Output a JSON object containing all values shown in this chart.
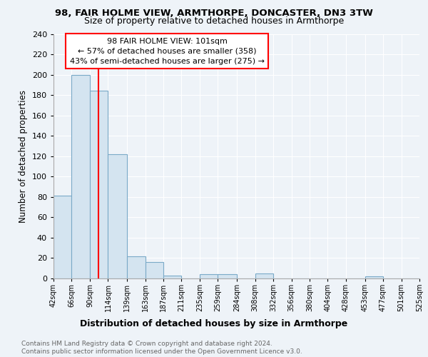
{
  "title1": "98, FAIR HOLME VIEW, ARMTHORPE, DONCASTER, DN3 3TW",
  "title2": "Size of property relative to detached houses in Armthorpe",
  "xlabel": "Distribution of detached houses by size in Armthorpe",
  "ylabel": "Number of detached properties",
  "bar_color": "#d4e4f0",
  "bar_edge_color": "#7aaac8",
  "bin_edges": [
    42,
    66,
    90,
    114,
    139,
    163,
    187,
    211,
    235,
    259,
    284,
    308,
    332,
    356,
    380,
    404,
    428,
    453,
    477,
    501,
    525
  ],
  "bar_heights": [
    81,
    200,
    184,
    122,
    22,
    16,
    3,
    0,
    4,
    4,
    0,
    5,
    0,
    0,
    0,
    0,
    0,
    2,
    0,
    0
  ],
  "red_line_x": 101,
  "annotation_line1": "98 FAIR HOLME VIEW: 101sqm",
  "annotation_line2": "← 57% of detached houses are smaller (358)",
  "annotation_line3": "43% of semi-detached houses are larger (275) →",
  "annotation_box_color": "white",
  "annotation_box_edge_color": "red",
  "ylim": [
    0,
    240
  ],
  "yticks": [
    0,
    20,
    40,
    60,
    80,
    100,
    120,
    140,
    160,
    180,
    200,
    220,
    240
  ],
  "tick_labels": [
    "42sqm",
    "66sqm",
    "90sqm",
    "114sqm",
    "139sqm",
    "163sqm",
    "187sqm",
    "211sqm",
    "235sqm",
    "259sqm",
    "284sqm",
    "308sqm",
    "332sqm",
    "356sqm",
    "380sqm",
    "404sqm",
    "428sqm",
    "453sqm",
    "477sqm",
    "501sqm",
    "525sqm"
  ],
  "footer_text": "Contains HM Land Registry data © Crown copyright and database right 2024.\nContains public sector information licensed under the Open Government Licence v3.0.",
  "bg_color": "#eef3f8",
  "grid_color": "white"
}
